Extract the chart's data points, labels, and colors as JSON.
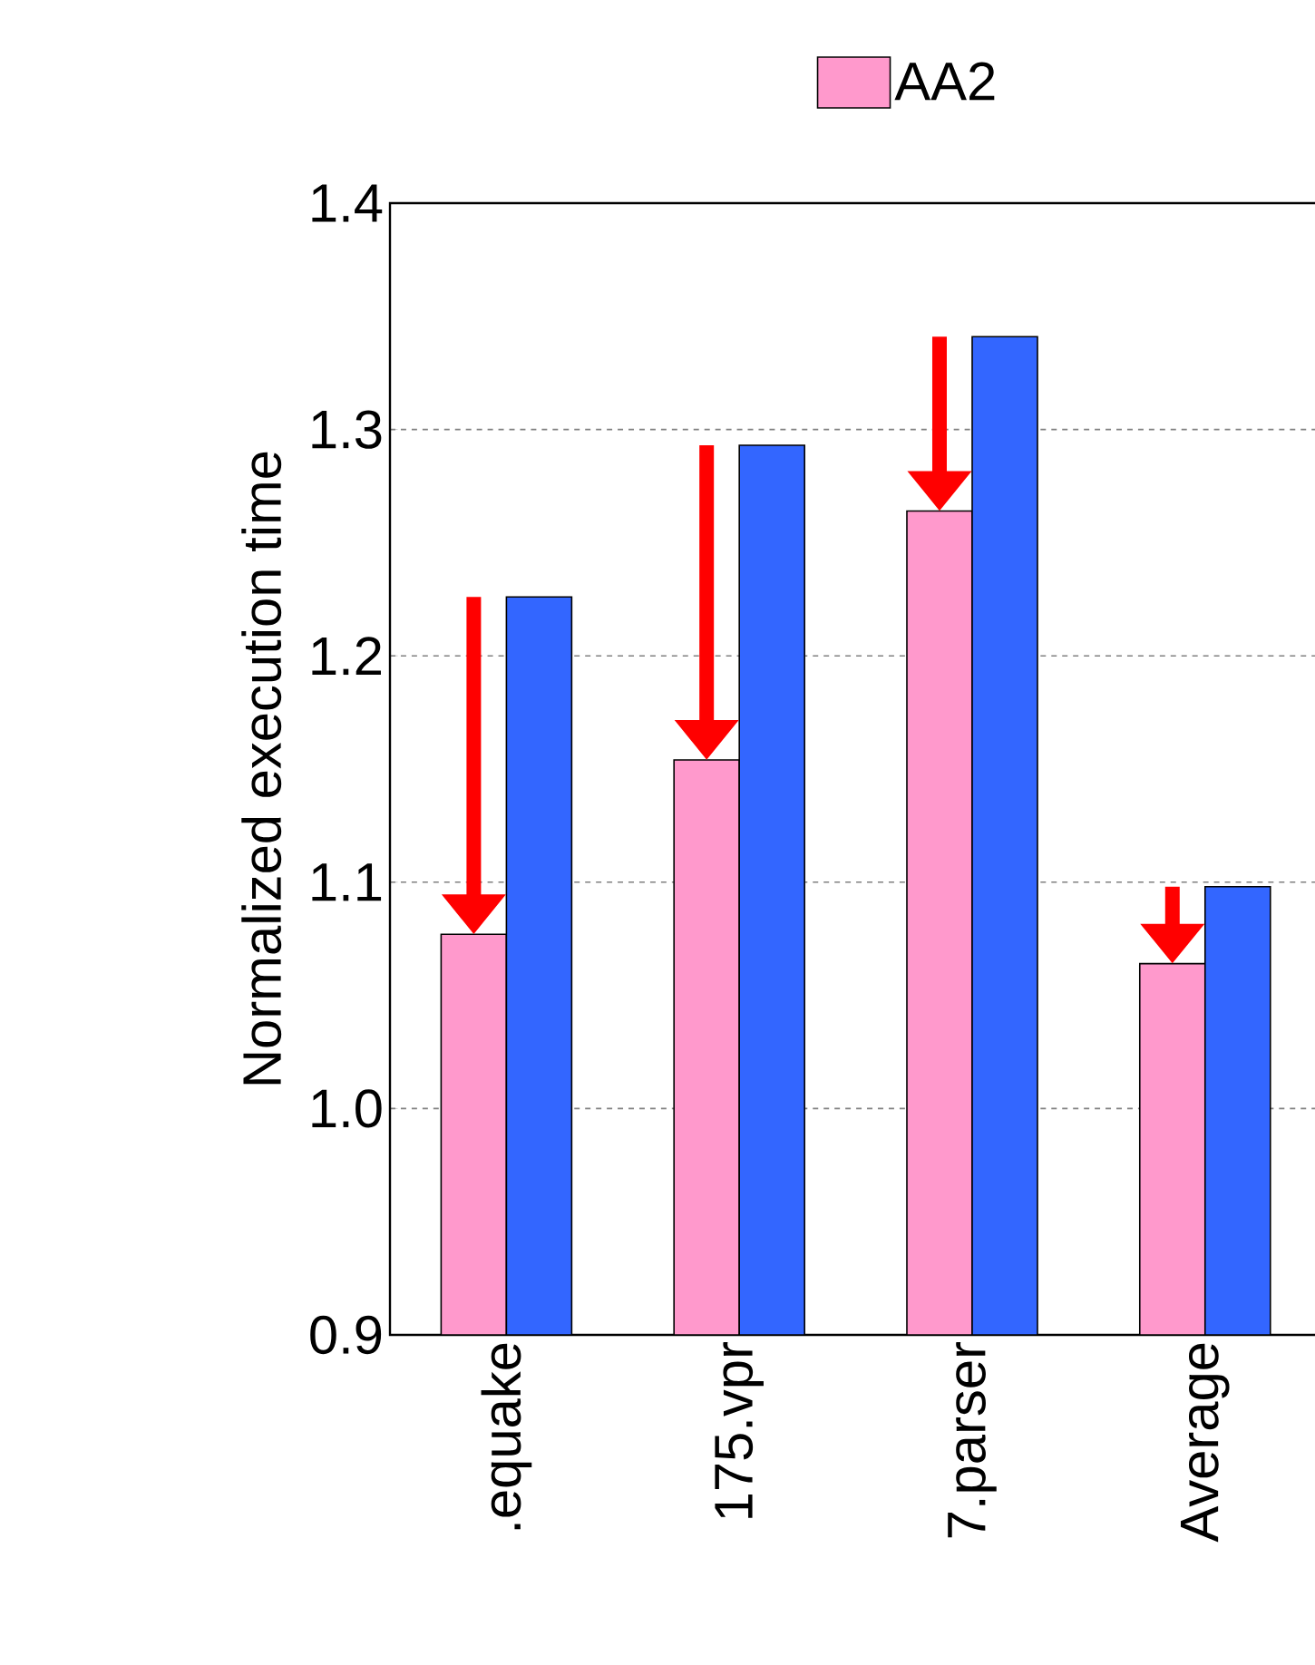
{
  "chart_data": {
    "type": "bar",
    "ylabel": "Normalized execution time",
    "categories": [
      ".equake",
      "175.vpr",
      "7.parser",
      "Average"
    ],
    "series": [
      {
        "name": "AA2",
        "color": "#ff99cc",
        "values": [
          1.077,
          1.154,
          1.264,
          1.064
        ]
      },
      {
        "color": "#3366ff",
        "values": [
          1.226,
          1.293,
          1.341,
          1.098
        ]
      }
    ],
    "ylim": [
      0.9,
      1.4
    ],
    "yticks": [
      0.9,
      {
        "value": 1.0,
        "label": "1.0"
      },
      1.1,
      1.2,
      1.3,
      1.4
    ],
    "grid": "y",
    "legend": "top"
  }
}
